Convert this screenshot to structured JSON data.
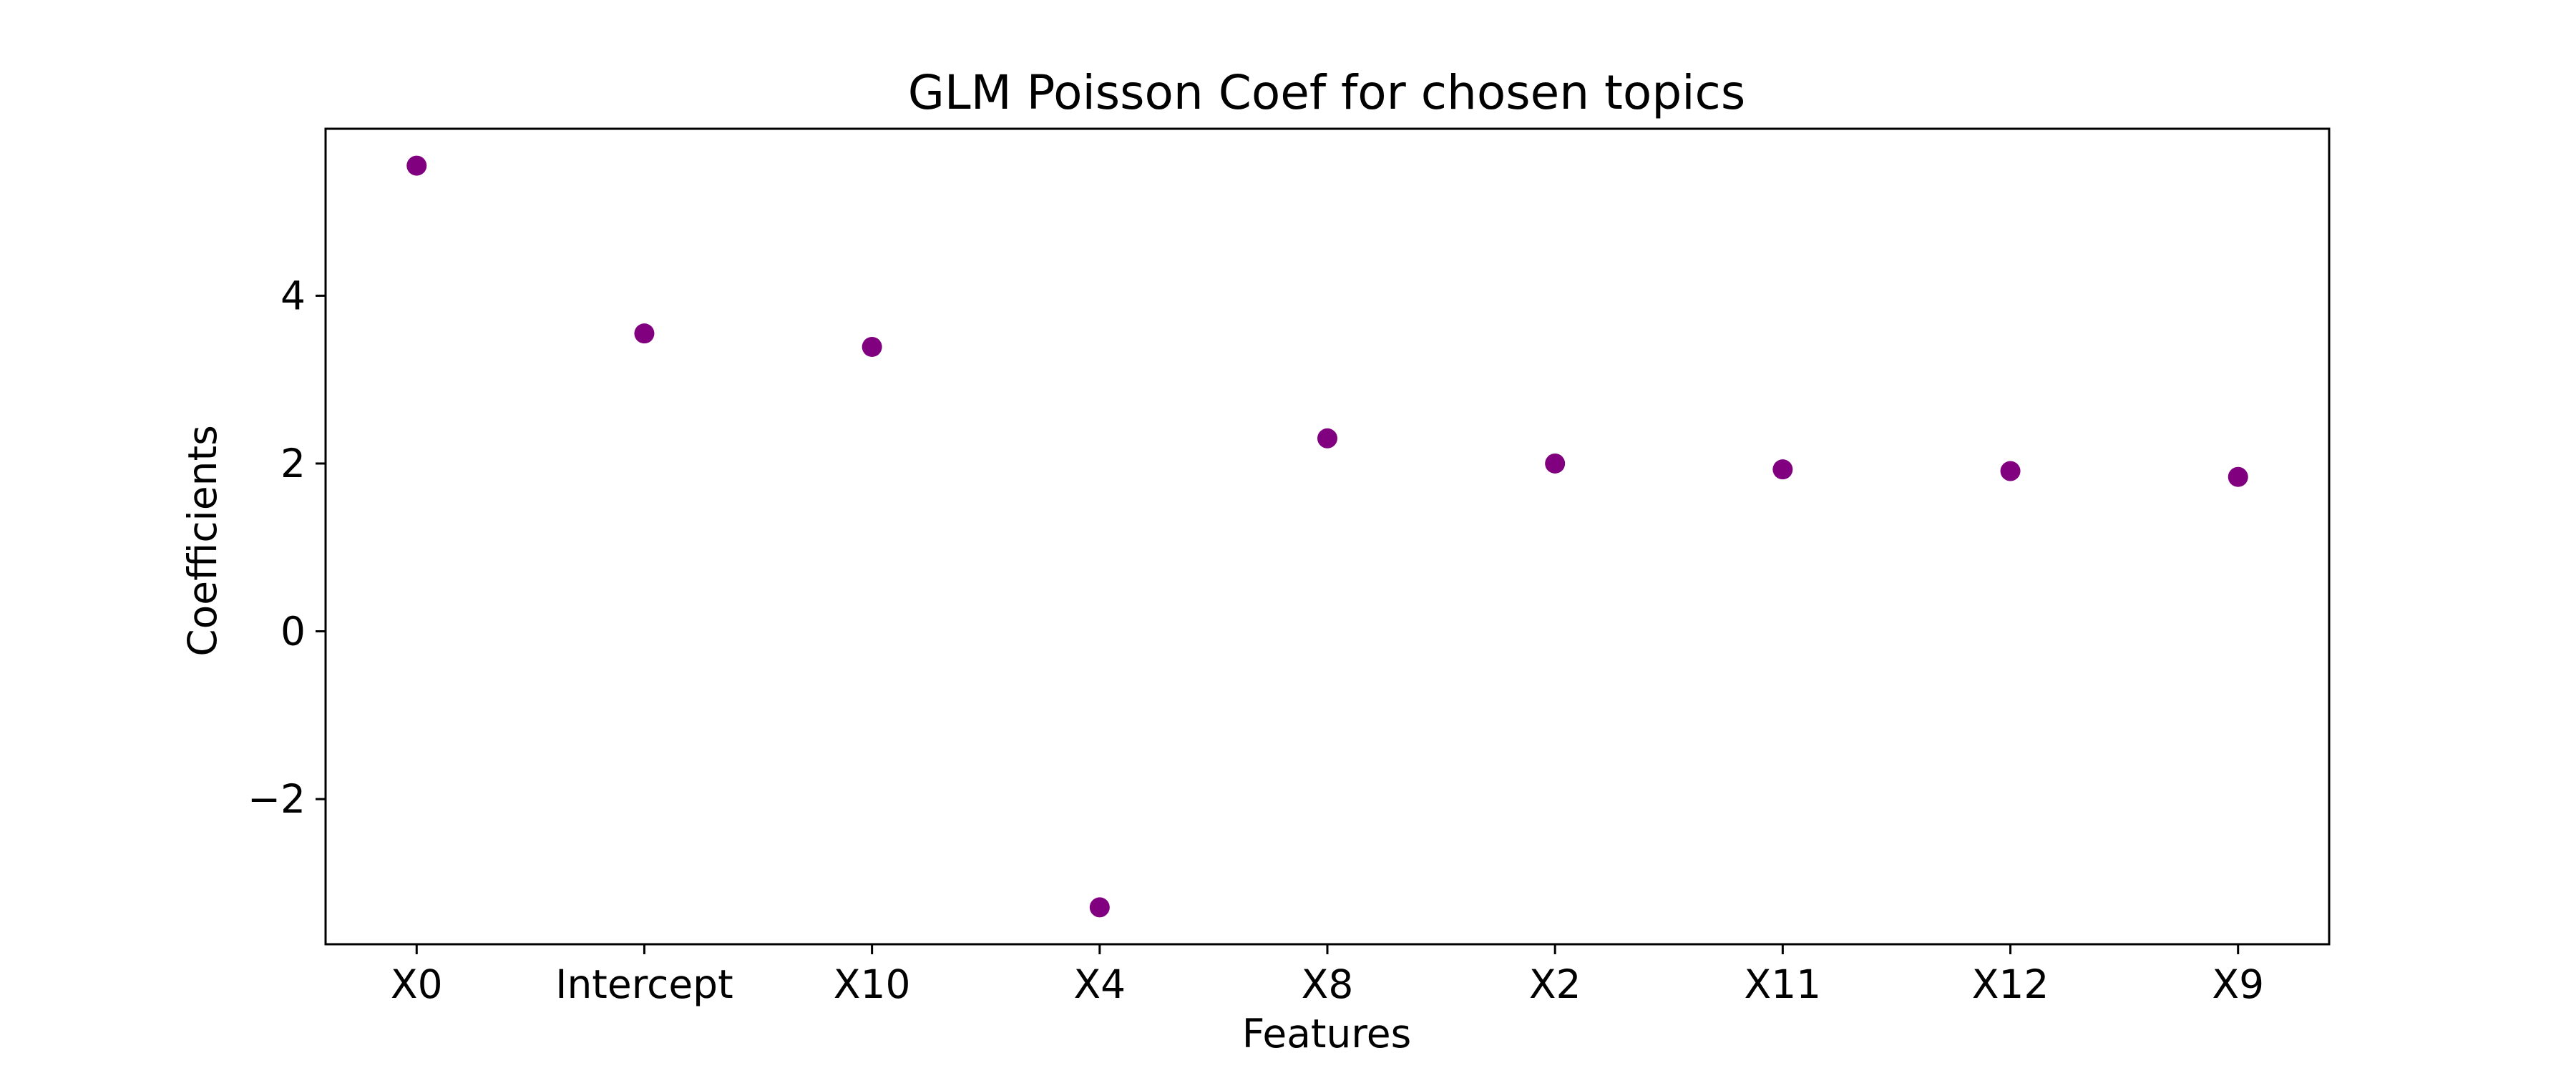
{
  "chart_data": {
    "type": "scatter",
    "title": "GLM Poisson Coef for chosen topics",
    "xlabel": "Features",
    "ylabel": "Coefficients",
    "categories": [
      "X0",
      "Intercept",
      "X10",
      "X4",
      "X8",
      "X2",
      "X11",
      "X12",
      "X9"
    ],
    "values": [
      5.55,
      3.55,
      3.39,
      -3.29,
      2.3,
      2.0,
      1.93,
      1.91,
      1.84
    ],
    "ylim": [
      -3.73,
      5.99
    ],
    "yticks": [
      -2,
      0,
      2,
      4
    ],
    "ytick_labels": [
      "−2",
      "0",
      "2",
      "4"
    ],
    "grid": false,
    "legend": "none",
    "marker_color": "#800080"
  }
}
